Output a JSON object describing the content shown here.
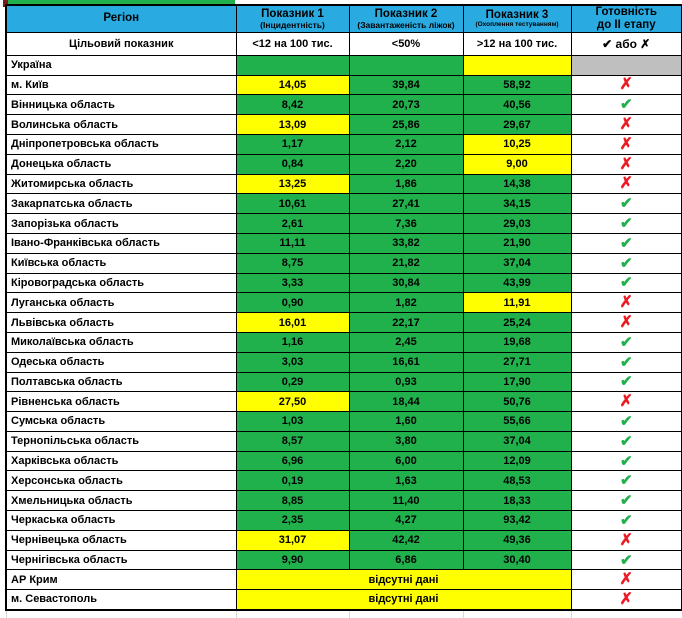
{
  "chart_data": {
    "type": "table",
    "header": {
      "region": "Регіон",
      "indicator1_title": "Показник 1",
      "indicator1_sub": "(Інцидентність)",
      "indicator2_title": "Показник 2",
      "indicator2_sub": "(Завантаженість ліжок)",
      "indicator3_title": "Показник 3",
      "indicator3_sub": "(Охоплення тестуванням)",
      "readiness_title": "Готовність",
      "readiness_sub": "до II етапу"
    },
    "target_row": {
      "label": "Цільовий показник",
      "indicator1": "<12 на 100 тис.",
      "indicator2": "<50%",
      "indicator3": ">12 на 100 тис.",
      "readiness": "✔ або ✗"
    },
    "marks": {
      "check": "✔",
      "cross": "✗"
    },
    "no_data_label": "відсутні дані",
    "rows": [
      {
        "region": "Україна",
        "v1": "",
        "c1": "green",
        "v2": "",
        "c2": "green",
        "v3": "",
        "c3": "yellow",
        "ready": "none",
        "ready_bg": "gray"
      },
      {
        "region": "м. Київ",
        "v1": "14,05",
        "c1": "yellow",
        "v2": "39,84",
        "c2": "green",
        "v3": "58,92",
        "c3": "green",
        "ready": "cross"
      },
      {
        "region": "Вінницька область",
        "v1": "8,42",
        "c1": "green",
        "v2": "20,73",
        "c2": "green",
        "v3": "40,56",
        "c3": "green",
        "ready": "check"
      },
      {
        "region": "Волинська область",
        "v1": "13,09",
        "c1": "yellow",
        "v2": "25,86",
        "c2": "green",
        "v3": "29,67",
        "c3": "green",
        "ready": "cross"
      },
      {
        "region": "Дніпропетровська область",
        "v1": "1,17",
        "c1": "green",
        "v2": "2,12",
        "c2": "green",
        "v3": "10,25",
        "c3": "yellow",
        "ready": "cross"
      },
      {
        "region": "Донецька область",
        "v1": "0,84",
        "c1": "green",
        "v2": "2,20",
        "c2": "green",
        "v3": "9,00",
        "c3": "yellow",
        "ready": "cross"
      },
      {
        "region": "Житомирська область",
        "v1": "13,25",
        "c1": "yellow",
        "v2": "1,86",
        "c2": "green",
        "v3": "14,38",
        "c3": "green",
        "ready": "cross"
      },
      {
        "region": "Закарпатська область",
        "v1": "10,61",
        "c1": "green",
        "v2": "27,41",
        "c2": "green",
        "v3": "34,15",
        "c3": "green",
        "ready": "check"
      },
      {
        "region": "Запорізька область",
        "v1": "2,61",
        "c1": "green",
        "v2": "7,36",
        "c2": "green",
        "v3": "29,03",
        "c3": "green",
        "ready": "check"
      },
      {
        "region": "Івано-Франківська область",
        "v1": "11,11",
        "c1": "green",
        "v2": "33,82",
        "c2": "green",
        "v3": "21,90",
        "c3": "green",
        "ready": "check"
      },
      {
        "region": "Київська область",
        "v1": "8,75",
        "c1": "green",
        "v2": "21,82",
        "c2": "green",
        "v3": "37,04",
        "c3": "green",
        "ready": "check"
      },
      {
        "region": "Кіровоградська область",
        "v1": "3,33",
        "c1": "green",
        "v2": "30,84",
        "c2": "green",
        "v3": "43,99",
        "c3": "green",
        "ready": "check"
      },
      {
        "region": "Луганська область",
        "v1": "0,90",
        "c1": "green",
        "v2": "1,82",
        "c2": "green",
        "v3": "11,91",
        "c3": "yellow",
        "ready": "cross"
      },
      {
        "region": "Львівська область",
        "v1": "16,01",
        "c1": "yellow",
        "v2": "22,17",
        "c2": "green",
        "v3": "25,24",
        "c3": "green",
        "ready": "cross"
      },
      {
        "region": "Миколаївська область",
        "v1": "1,16",
        "c1": "green",
        "v2": "2,45",
        "c2": "green",
        "v3": "19,68",
        "c3": "green",
        "ready": "check"
      },
      {
        "region": "Одеська область",
        "v1": "3,03",
        "c1": "green",
        "v2": "16,61",
        "c2": "green",
        "v3": "27,71",
        "c3": "green",
        "ready": "check"
      },
      {
        "region": "Полтавська область",
        "v1": "0,29",
        "c1": "green",
        "v2": "0,93",
        "c2": "green",
        "v3": "17,90",
        "c3": "green",
        "ready": "check"
      },
      {
        "region": "Рівненська область",
        "v1": "27,50",
        "c1": "yellow",
        "v2": "18,44",
        "c2": "green",
        "v3": "50,76",
        "c3": "green",
        "ready": "cross"
      },
      {
        "region": "Сумська область",
        "v1": "1,03",
        "c1": "green",
        "v2": "1,60",
        "c2": "green",
        "v3": "55,66",
        "c3": "green",
        "ready": "check"
      },
      {
        "region": "Тернопільська область",
        "v1": "8,57",
        "c1": "green",
        "v2": "3,80",
        "c2": "green",
        "v3": "37,04",
        "c3": "green",
        "ready": "check"
      },
      {
        "region": "Харківська область",
        "v1": "6,96",
        "c1": "green",
        "v2": "6,00",
        "c2": "green",
        "v3": "12,09",
        "c3": "green",
        "ready": "check"
      },
      {
        "region": "Херсонська область",
        "v1": "0,19",
        "c1": "green",
        "v2": "1,63",
        "c2": "green",
        "v3": "48,53",
        "c3": "green",
        "ready": "check"
      },
      {
        "region": "Хмельницька область",
        "v1": "8,85",
        "c1": "green",
        "v2": "11,40",
        "c2": "green",
        "v3": "18,33",
        "c3": "green",
        "ready": "check"
      },
      {
        "region": "Черкаська область",
        "v1": "2,35",
        "c1": "green",
        "v2": "4,27",
        "c2": "green",
        "v3": "93,42",
        "c3": "green",
        "ready": "check"
      },
      {
        "region": "Чернівецька область",
        "v1": "31,07",
        "c1": "yellow",
        "v2": "42,42",
        "c2": "green",
        "v3": "49,36",
        "c3": "green",
        "ready": "cross"
      },
      {
        "region": "Чернігівська область",
        "v1": "9,90",
        "c1": "green",
        "v2": "6,86",
        "c2": "green",
        "v3": "30,40",
        "c3": "green",
        "ready": "check"
      },
      {
        "region": "АР Крим",
        "merged": "відсутні дані",
        "ready": "cross"
      },
      {
        "region": "м. Севастополь",
        "merged": "відсутні дані",
        "ready": "cross"
      }
    ]
  },
  "colors": {
    "header_blue": "#29ABE2",
    "cell_green": "#21B14C",
    "cell_yellow": "#FFFF00",
    "cell_gray": "#BFBFBF",
    "check_green": "#21B14C",
    "cross_red": "#EC1C24"
  }
}
